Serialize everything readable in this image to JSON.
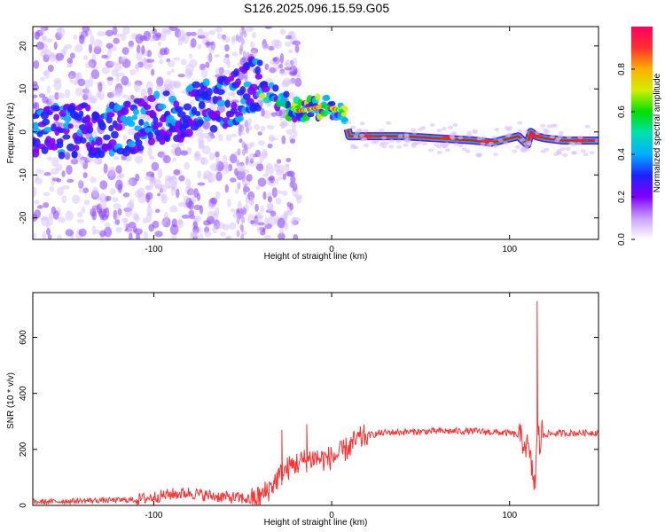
{
  "figure": {
    "title": "S126.2025.096.15.59.G05"
  },
  "chart_data": [
    {
      "type": "heatmap",
      "xlabel": "Height of straight line (km)",
      "ylabel": "Frequency (Hz)",
      "xlim": [
        -168,
        150
      ],
      "ylim": [
        -25,
        24.5
      ],
      "x_ticks": [
        -100,
        0,
        100
      ],
      "y_ticks": [
        -20,
        -10,
        0,
        10,
        20
      ],
      "grid": false,
      "colormap": [
        "#ffffff",
        "#c8a0ff",
        "#8000ff",
        "#2020ff",
        "#00b0ff",
        "#00e0b0",
        "#00e000",
        "#d0f000",
        "#ffb000",
        "#ff3030",
        "#ff0060"
      ],
      "colorbar": {
        "label": "Normalized spectral amplitude",
        "ticks": [
          0.0,
          0.2,
          0.4,
          0.6,
          0.8
        ],
        "range": [
          0,
          1
        ]
      },
      "ridge": {
        "x": [
          -168,
          -150,
          -130,
          -110,
          -95,
          -80,
          -65,
          -55,
          -45,
          -38,
          -30,
          -25,
          -20,
          -15,
          -10,
          -5,
          0,
          5,
          7,
          10,
          20,
          40,
          60,
          80,
          90,
          95,
          100,
          105,
          110,
          112,
          115,
          120,
          130,
          150
        ],
        "y": [
          0,
          0,
          0.5,
          1.5,
          3,
          5,
          6.5,
          8,
          11,
          10,
          8,
          6,
          5,
          5,
          5.5,
          6,
          5.5,
          5,
          4,
          -1,
          -1,
          -1,
          -1.5,
          -2,
          -2.5,
          -2,
          -1.5,
          -1,
          -3,
          0,
          -1,
          -1.5,
          -2,
          -2
        ]
      }
    },
    {
      "type": "line",
      "xlabel": "Height of straight line (km)",
      "ylabel": "SNR (10 * v/v)",
      "xlim": [
        -168,
        150
      ],
      "ylim": [
        0,
        760
      ],
      "x_ticks": [
        -100,
        0,
        100
      ],
      "y_ticks": [
        0,
        200,
        400,
        600
      ],
      "grid": false,
      "series": [
        {
          "color": "#ff3030",
          "x": [
            -168,
            -150,
            -130,
            -110,
            -100,
            -90,
            -80,
            -70,
            -60,
            -50,
            -45,
            -40,
            -35,
            -30,
            -25,
            -20,
            -15,
            -10,
            -5,
            0,
            5,
            10,
            15,
            20,
            30,
            40,
            60,
            80,
            100,
            105,
            110,
            112,
            113,
            114,
            115,
            116,
            117,
            118,
            120,
            130,
            150
          ],
          "y": [
            12,
            15,
            18,
            20,
            30,
            40,
            45,
            35,
            30,
            25,
            20,
            30,
            60,
            100,
            130,
            150,
            160,
            170,
            165,
            170,
            185,
            210,
            235,
            250,
            260,
            262,
            265,
            265,
            258,
            250,
            210,
            150,
            110,
            80,
            160,
            300,
            200,
            265,
            255,
            258,
            260
          ]
        }
      ],
      "spikes": [
        {
          "x": 115.5,
          "y": 730
        },
        {
          "x": 114.5,
          "y": 60
        },
        {
          "x": -14,
          "y": 290
        },
        {
          "x": -28,
          "y": 270
        }
      ]
    }
  ]
}
